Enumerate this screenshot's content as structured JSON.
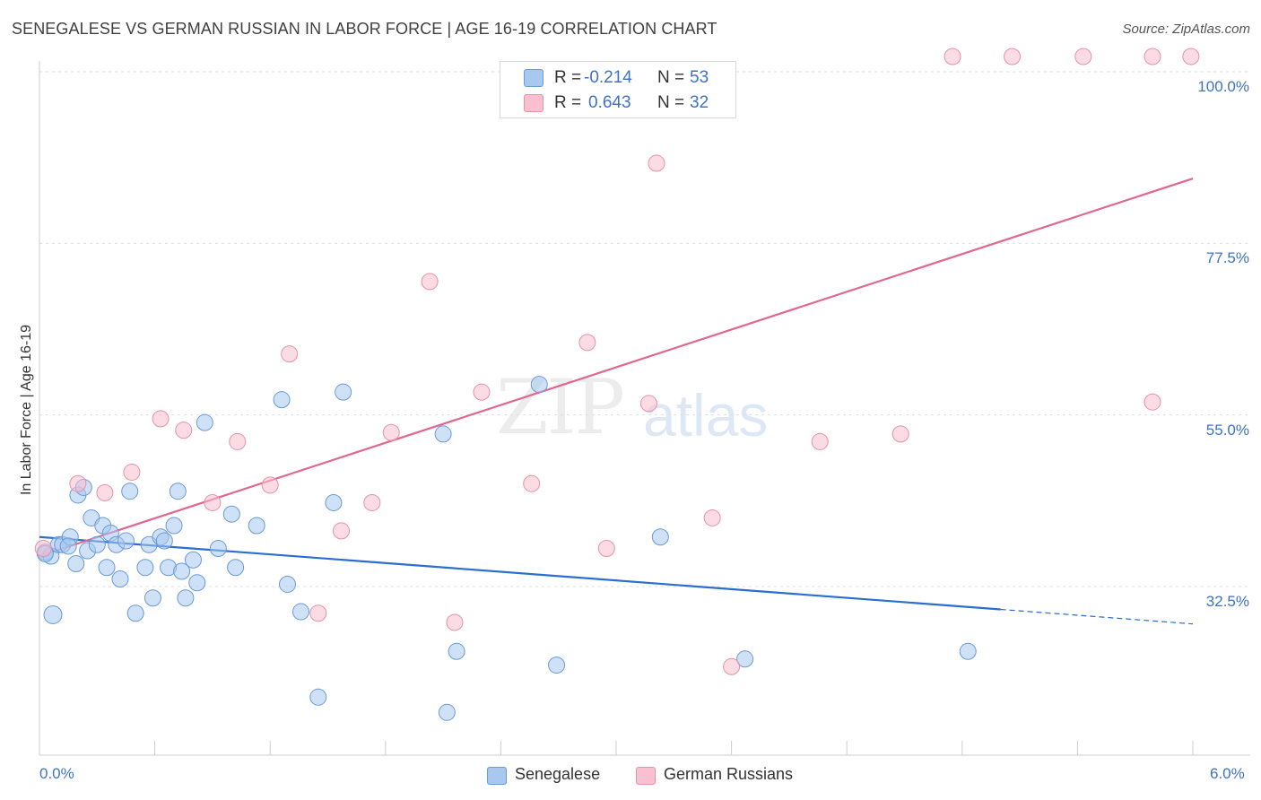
{
  "title": "SENEGALESE VS GERMAN RUSSIAN IN LABOR FORCE | AGE 16-19 CORRELATION CHART",
  "source": "Source: ZipAtlas.com",
  "watermark": {
    "zip": "ZIP",
    "atlas": "atlas"
  },
  "legend": {
    "rows": [
      {
        "r_label": "R =",
        "r_value": "-0.214",
        "n_label": "N =",
        "n_value": "53",
        "color": "#a8c8f0",
        "border": "#6a9ad8"
      },
      {
        "r_label": "R =",
        "r_value": "0.643",
        "n_label": "N =",
        "n_value": "32",
        "color": "#f8c0d0",
        "border": "#e890a8"
      }
    ]
  },
  "bottom_legend": {
    "series1": "Senegalese",
    "series2": "German Russians"
  },
  "chart_data": {
    "type": "scatter",
    "title": "SENEGALESE VS GERMAN RUSSIAN IN LABOR FORCE | AGE 16-19 CORRELATION CHART",
    "xlabel": "",
    "ylabel": "In Labor Force | Age 16-19",
    "xlim": [
      0.0,
      6.0
    ],
    "ylim": [
      10.0,
      102.0
    ],
    "x_tick_labels": [
      "0.0%",
      "6.0%"
    ],
    "y_tick_values": [
      32.5,
      55.0,
      77.5,
      100.0
    ],
    "y_tick_labels": [
      "32.5%",
      "55.0%",
      "77.5%",
      "100.0%"
    ],
    "series": [
      {
        "name": "Senegalese",
        "color": "#a8c8f0",
        "stroke": "#6a9ad8",
        "line_color": "#2a6fd0",
        "points": [
          [
            0.03,
            37.0
          ],
          [
            0.06,
            36.5
          ],
          [
            0.1,
            38.0
          ],
          [
            0.12,
            38.0
          ],
          [
            0.16,
            39.0
          ],
          [
            0.19,
            35.5
          ],
          [
            0.2,
            44.5
          ],
          [
            0.23,
            45.5
          ],
          [
            0.25,
            37.2
          ],
          [
            0.27,
            41.5
          ],
          [
            0.3,
            38.0
          ],
          [
            0.33,
            40.5
          ],
          [
            0.35,
            35.0
          ],
          [
            0.37,
            39.5
          ],
          [
            0.4,
            38.0
          ],
          [
            0.42,
            33.5
          ],
          [
            0.45,
            38.5
          ],
          [
            0.47,
            45.0
          ],
          [
            0.5,
            29.0
          ],
          [
            0.55,
            35.0
          ],
          [
            0.57,
            38.0
          ],
          [
            0.59,
            31.0
          ],
          [
            0.63,
            39.0
          ],
          [
            0.65,
            38.5
          ],
          [
            0.67,
            35.0
          ],
          [
            0.7,
            40.5
          ],
          [
            0.72,
            45.0
          ],
          [
            0.74,
            34.5
          ],
          [
            0.76,
            31.0
          ],
          [
            0.8,
            36.0
          ],
          [
            0.82,
            33.0
          ],
          [
            0.86,
            54.0
          ],
          [
            0.93,
            37.5
          ],
          [
            1.0,
            42.0
          ],
          [
            1.02,
            35.0
          ],
          [
            1.13,
            40.5
          ],
          [
            1.26,
            57.0
          ],
          [
            1.29,
            32.8
          ],
          [
            1.36,
            29.2
          ],
          [
            1.45,
            18.0
          ],
          [
            1.53,
            43.5
          ],
          [
            1.58,
            58.0
          ],
          [
            2.1,
            52.5
          ],
          [
            2.12,
            16.0
          ],
          [
            2.17,
            24.0
          ],
          [
            2.6,
            59.0
          ],
          [
            2.69,
            22.2
          ],
          [
            3.23,
            39.0
          ],
          [
            3.67,
            23.0
          ],
          [
            4.83,
            24.0
          ],
          [
            0.07,
            28.8
          ],
          [
            0.03,
            36.8
          ],
          [
            0.15,
            37.8
          ]
        ],
        "trend": {
          "x0": 0.0,
          "y0": 39.0,
          "x1": 5.0,
          "y1": 29.5,
          "dash_x1": 6.0,
          "dash_y1": 27.6
        }
      },
      {
        "name": "German Russians",
        "color": "#f8c0d0",
        "stroke": "#e890a8",
        "line_color": "#e06890",
        "points": [
          [
            0.02,
            37.5
          ],
          [
            0.2,
            46.0
          ],
          [
            0.34,
            44.8
          ],
          [
            0.48,
            47.5
          ],
          [
            0.63,
            54.5
          ],
          [
            0.75,
            53.0
          ],
          [
            0.9,
            43.5
          ],
          [
            1.03,
            51.5
          ],
          [
            1.2,
            45.8
          ],
          [
            1.3,
            63.0
          ],
          [
            1.45,
            29.0
          ],
          [
            1.57,
            39.8
          ],
          [
            1.73,
            43.5
          ],
          [
            1.83,
            52.7
          ],
          [
            2.03,
            72.5
          ],
          [
            2.16,
            27.8
          ],
          [
            2.3,
            58.0
          ],
          [
            2.56,
            46.0
          ],
          [
            2.85,
            64.5
          ],
          [
            2.95,
            37.5
          ],
          [
            3.17,
            56.5
          ],
          [
            3.21,
            88.0
          ],
          [
            3.5,
            41.5
          ],
          [
            3.6,
            22.0
          ],
          [
            4.06,
            51.5
          ],
          [
            4.48,
            52.5
          ],
          [
            4.75,
            102.0
          ],
          [
            5.06,
            102.0
          ],
          [
            5.43,
            102.0
          ],
          [
            5.79,
            56.7
          ],
          [
            5.79,
            102.0
          ],
          [
            5.99,
            102.0
          ]
        ],
        "trend": {
          "x0": 0.0,
          "y0": 36.5,
          "x1": 6.0,
          "y1": 86.0
        }
      }
    ]
  }
}
